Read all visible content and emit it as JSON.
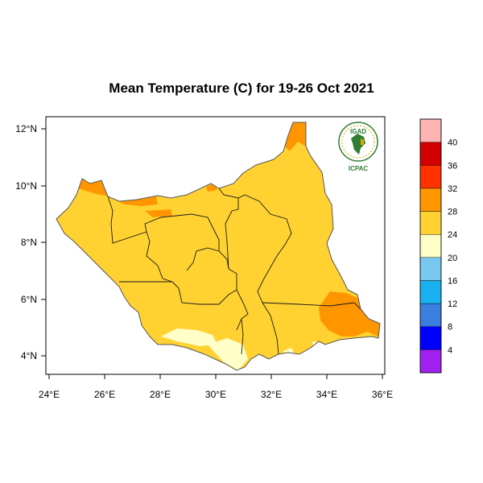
{
  "title": "Mean Temperature (C) for 19-26 Oct 2021",
  "logo": {
    "top_text": "IGAD",
    "bottom_text": "ICPAC"
  },
  "map": {
    "x_ticks": [
      "24°E",
      "26°E",
      "28°E",
      "30°E",
      "32°E",
      "34°E",
      "36°E"
    ],
    "y_ticks": [
      "4°N",
      "6°N",
      "8°N",
      "10°N",
      "12°N"
    ]
  },
  "colorbar": {
    "labels": [
      "4",
      "8",
      "12",
      "16",
      "20",
      "24",
      "28",
      "32",
      "36",
      "40"
    ],
    "colors": [
      "#a020f0",
      "#0000ff",
      "#3a7ee0",
      "#19b0f0",
      "#78c8f0",
      "#ffffc8",
      "#ffd232",
      "#ff9600",
      "#ff3200",
      "#d20000",
      "#ffb4b4"
    ]
  }
}
